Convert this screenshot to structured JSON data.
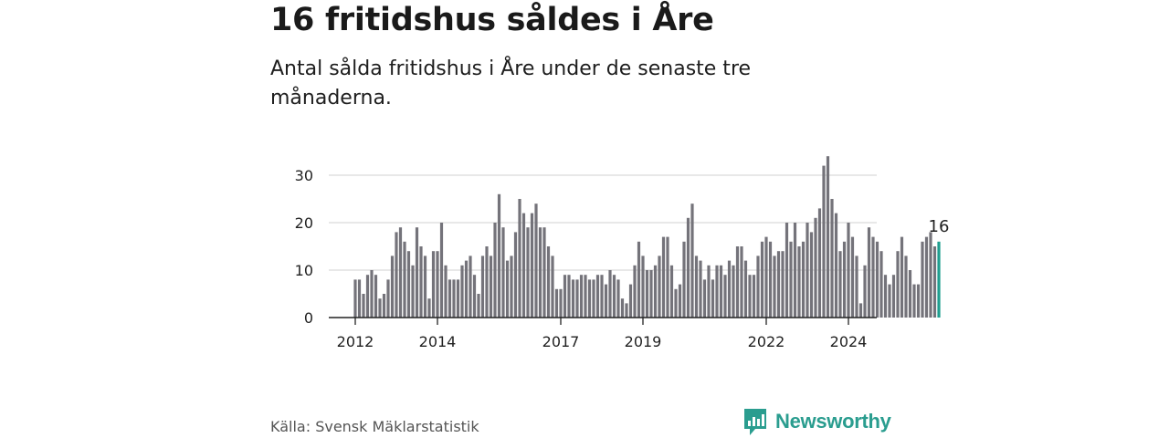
{
  "title": "16 fritidshus såldes i Åre",
  "subtitle": "Antal sålda fritidshus i Åre under de senaste tre månaderna.",
  "source": "Källa: Svensk Mäklarstatistik",
  "brand": "Newsworthy",
  "colors": {
    "bar": "#74737a",
    "highlight": "#1f9e8f",
    "grid": "#d9d9d9",
    "axis": "#222222",
    "brand": "#2a9d8f"
  },
  "chart_data": {
    "type": "bar",
    "title": "16 fritidshus såldes i Åre",
    "ylabel": "",
    "xlabel": "",
    "ylim": [
      0,
      34
    ],
    "yticks": [
      0,
      10,
      20,
      30
    ],
    "xticks": [
      {
        "label": "2012",
        "index": 0
      },
      {
        "label": "2014",
        "index": 20
      },
      {
        "label": "2017",
        "index": 50
      },
      {
        "label": "2019",
        "index": 70
      },
      {
        "label": "2022",
        "index": 100
      },
      {
        "label": "2024",
        "index": 120
      }
    ],
    "values": [
      8,
      8,
      5,
      9,
      10,
      9,
      4,
      5,
      8,
      13,
      18,
      19,
      16,
      14,
      11,
      19,
      15,
      13,
      4,
      14,
      14,
      20,
      11,
      8,
      8,
      8,
      11,
      12,
      13,
      9,
      5,
      13,
      15,
      13,
      20,
      26,
      19,
      12,
      13,
      18,
      25,
      22,
      19,
      22,
      24,
      19,
      19,
      15,
      13,
      6,
      6,
      9,
      9,
      8,
      8,
      9,
      9,
      8,
      8,
      9,
      9,
      7,
      10,
      9,
      8,
      4,
      3,
      7,
      11,
      16,
      13,
      10,
      10,
      11,
      13,
      17,
      17,
      11,
      6,
      7,
      16,
      21,
      24,
      13,
      12,
      8,
      11,
      8,
      11,
      11,
      9,
      12,
      11,
      15,
      15,
      12,
      9,
      9,
      13,
      16,
      17,
      16,
      13,
      14,
      14,
      20,
      16,
      20,
      15,
      16,
      20,
      18,
      21,
      23,
      32,
      34,
      25,
      22,
      14,
      16,
      20,
      17,
      13,
      3,
      11,
      19,
      17,
      16,
      14,
      9,
      7,
      9,
      14,
      17,
      13,
      10,
      7,
      7,
      16,
      17,
      18,
      15,
      16
    ],
    "highlight_last": true,
    "data_label": "16"
  }
}
